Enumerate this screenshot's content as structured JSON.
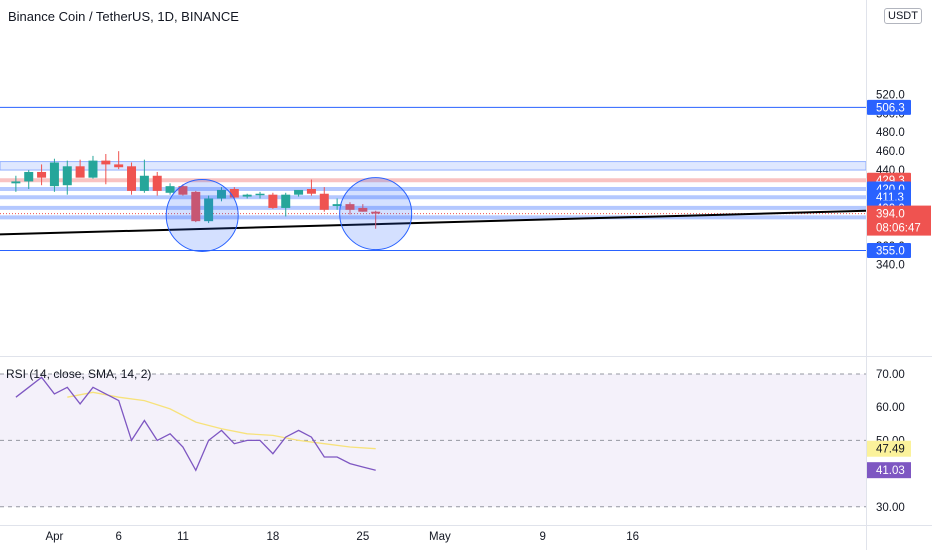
{
  "header": {
    "title": "Binance Coin / TetherUS, 1D, BINANCE",
    "currency": "USDT"
  },
  "rsi_panel": {
    "title": "RSI (14, close, SMA, 14, 2)"
  },
  "colors": {
    "up": "#26a69a",
    "down": "#ef5350",
    "level_line": "#2962ff",
    "rsi_line": "#7e57c2",
    "rsi_sma": "#f7e27b",
    "rsi_band": "#ede7f6",
    "trendline": "#000000"
  },
  "chart_data": [
    {
      "type": "candlestick",
      "symbol": "BNBUSDT",
      "y_ticks": [
        340,
        360,
        380,
        420,
        440,
        460,
        480,
        500,
        520
      ],
      "y_range": [
        330,
        520
      ],
      "x_ticks": [
        {
          "label": "Apr",
          "day": 1
        },
        {
          "label": "6",
          "day": 6
        },
        {
          "label": "11",
          "day": 11
        },
        {
          "label": "18",
          "day": 18
        },
        {
          "label": "25",
          "day": 25
        },
        {
          "label": "May",
          "day": 31
        },
        {
          "label": "9",
          "day": 39
        },
        {
          "label": "16",
          "day": 46
        }
      ],
      "candles": [
        {
          "day": -2,
          "o": 426,
          "h": 434,
          "l": 417,
          "c": 428
        },
        {
          "day": -1,
          "o": 428,
          "h": 440,
          "l": 420,
          "c": 438
        },
        {
          "day": 0,
          "o": 438,
          "h": 446,
          "l": 424,
          "c": 432
        },
        {
          "day": 1,
          "o": 423,
          "h": 452,
          "l": 417,
          "c": 448
        },
        {
          "day": 2,
          "o": 424,
          "h": 450,
          "l": 414,
          "c": 444
        },
        {
          "day": 3,
          "o": 444,
          "h": 451,
          "l": 433,
          "c": 432
        },
        {
          "day": 4,
          "o": 432,
          "h": 455,
          "l": 431,
          "c": 450
        },
        {
          "day": 5,
          "o": 450,
          "h": 457,
          "l": 425,
          "c": 446
        },
        {
          "day": 6,
          "o": 446,
          "h": 460,
          "l": 441,
          "c": 443
        },
        {
          "day": 7,
          "o": 444,
          "h": 448,
          "l": 414,
          "c": 418
        },
        {
          "day": 8,
          "o": 418,
          "h": 451,
          "l": 416,
          "c": 434
        },
        {
          "day": 9,
          "o": 434,
          "h": 438,
          "l": 413,
          "c": 418
        },
        {
          "day": 10,
          "o": 416,
          "h": 426,
          "l": 414,
          "c": 423
        },
        {
          "day": 11,
          "o": 423,
          "h": 425,
          "l": 413,
          "c": 414
        },
        {
          "day": 12,
          "o": 417,
          "h": 418,
          "l": 385,
          "c": 386
        },
        {
          "day": 13,
          "o": 386,
          "h": 413,
          "l": 384,
          "c": 410
        },
        {
          "day": 14,
          "o": 410,
          "h": 422,
          "l": 407,
          "c": 419
        },
        {
          "day": 15,
          "o": 420,
          "h": 422,
          "l": 410,
          "c": 411
        },
        {
          "day": 16,
          "o": 412,
          "h": 415,
          "l": 410,
          "c": 414
        },
        {
          "day": 17,
          "o": 414,
          "h": 417,
          "l": 410,
          "c": 415
        },
        {
          "day": 18,
          "o": 414,
          "h": 416,
          "l": 399,
          "c": 400
        },
        {
          "day": 19,
          "o": 400,
          "h": 416,
          "l": 391,
          "c": 414
        },
        {
          "day": 20,
          "o": 414,
          "h": 418,
          "l": 412,
          "c": 419
        },
        {
          "day": 21,
          "o": 420,
          "h": 430,
          "l": 413,
          "c": 415
        },
        {
          "day": 22,
          "o": 415,
          "h": 422,
          "l": 396,
          "c": 398
        },
        {
          "day": 23,
          "o": 402,
          "h": 410,
          "l": 398,
          "c": 404
        },
        {
          "day": 24,
          "o": 404,
          "h": 406,
          "l": 393,
          "c": 398
        },
        {
          "day": 25,
          "o": 400,
          "h": 404,
          "l": 396,
          "c": 396
        },
        {
          "day": 26,
          "o": 396,
          "h": 397,
          "l": 378,
          "c": 394
        }
      ],
      "horizontal_levels": [
        {
          "value": 506.3,
          "label": "506.3",
          "style": "line"
        },
        {
          "value": 429.3,
          "label": "429.3",
          "style": "red"
        },
        {
          "value": 420.0,
          "label": "420.0",
          "style": "band"
        },
        {
          "value": 411.3,
          "label": "411.3",
          "style": "band"
        },
        {
          "value": 400.0,
          "label": "400.0",
          "style": "band"
        },
        {
          "value": 390.0,
          "label": "390.0",
          "style": "band"
        },
        {
          "value": 355.0,
          "label": "355.0",
          "style": "line"
        }
      ],
      "resistance_zone": [
        440,
        449
      ],
      "current_price": {
        "value": 394.0,
        "label": "394.0",
        "countdown": "08:06:47"
      },
      "trendline": {
        "from": {
          "day": -2,
          "value": 372
        },
        "to": {
          "day": 56,
          "value": 397
        }
      },
      "highlight_circles": [
        {
          "day": 12.5,
          "value": 392
        },
        {
          "day": 26,
          "value": 394
        }
      ]
    },
    {
      "type": "line",
      "title": "RSI (14, close, SMA, 14, 2)",
      "y_ticks": [
        30,
        40,
        50,
        60,
        70
      ],
      "y_range": [
        28,
        75
      ],
      "band": [
        30,
        70
      ],
      "series": [
        {
          "name": "RSI",
          "x": [
            -2,
            -1,
            0,
            1,
            2,
            3,
            4,
            5,
            6,
            7,
            8,
            9,
            10,
            11,
            12,
            13,
            14,
            15,
            16,
            17,
            18,
            19,
            20,
            21,
            22,
            23,
            24,
            25,
            26
          ],
          "values": [
            63,
            66,
            69,
            64,
            66,
            61,
            66,
            64,
            62,
            50,
            56,
            50,
            52,
            48,
            41,
            50,
            53,
            49,
            50,
            50,
            46,
            51,
            53,
            51,
            45,
            45,
            43,
            42,
            41.03
          ]
        },
        {
          "name": "SMA",
          "x": [
            2,
            4,
            6,
            8,
            10,
            12,
            14,
            16,
            18,
            20,
            22,
            24,
            26
          ],
          "values": [
            63,
            64.5,
            63,
            62,
            59.5,
            55.5,
            53.5,
            52,
            51.5,
            50,
            49,
            48,
            47.49
          ]
        }
      ],
      "last_rsi": "41.03",
      "last_sma": "47.49"
    }
  ]
}
